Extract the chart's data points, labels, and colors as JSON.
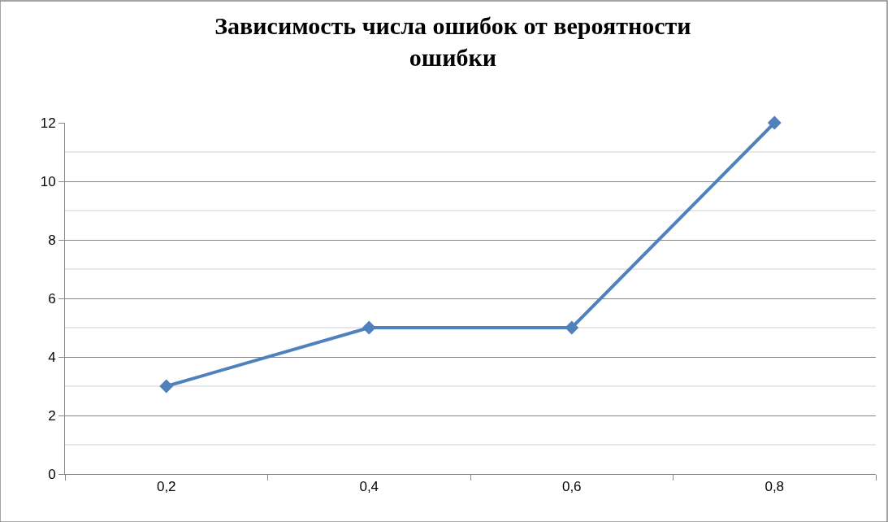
{
  "chart_data": {
    "type": "line",
    "title": "Зависимость числа ошибок от вероятности ошибки",
    "categories": [
      "0,2",
      "0,4",
      "0,6",
      "0,8"
    ],
    "series": [
      {
        "color": "#4f81bd",
        "values": [
          3,
          5,
          5,
          12
        ]
      }
    ],
    "ylim": [
      0,
      12
    ],
    "yticks": [
      0,
      2,
      4,
      6,
      8,
      10,
      12
    ],
    "grid": "y",
    "marker": "diamond",
    "line_style": "solid"
  }
}
